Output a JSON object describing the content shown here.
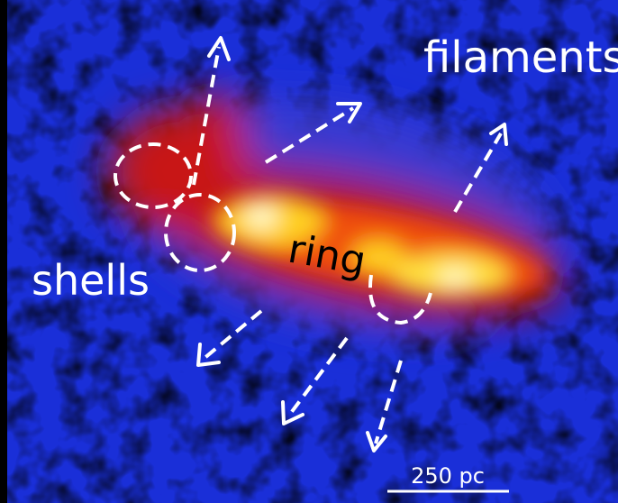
{
  "annotations": {
    "filaments": "filaments",
    "shells": "shells",
    "ring": "ring"
  },
  "scale_bar": "250 pc"
}
